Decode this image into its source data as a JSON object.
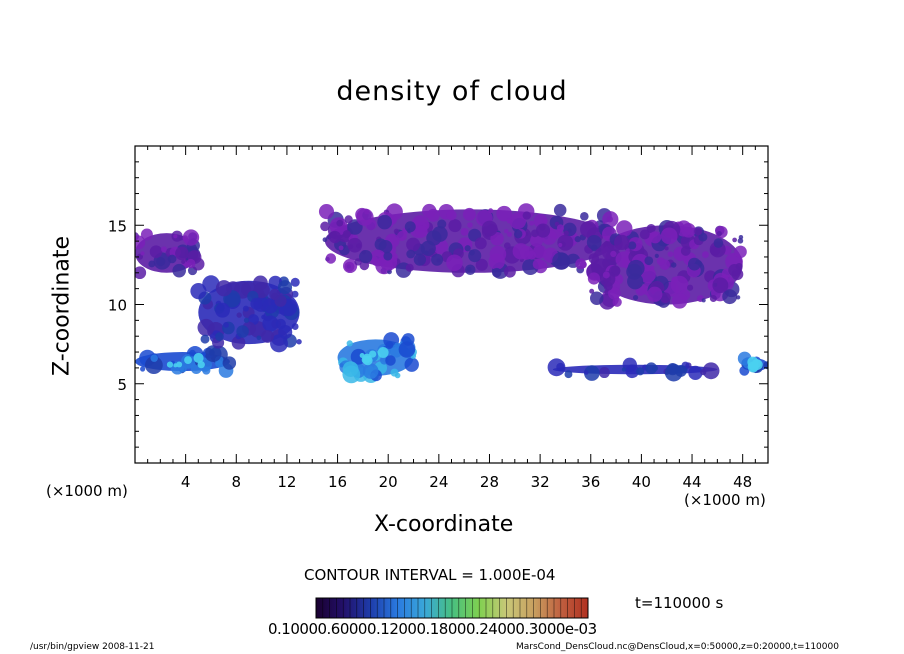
{
  "chart_data": {
    "type": "heatmap",
    "title": "density of cloud",
    "xlabel": "X-coordinate",
    "ylabel": "Z-coordinate",
    "x_unit_label": "(×1000 m)",
    "xlim": [
      0,
      50
    ],
    "ylim": [
      0,
      20
    ],
    "x_ticks": [
      "4",
      "8",
      "12",
      "16",
      "20",
      "24",
      "28",
      "32",
      "36",
      "40",
      "44",
      "48"
    ],
    "y_ticks": [
      "5",
      "10",
      "15"
    ],
    "contour_interval": "CONTOUR INTERVAL = 1.000E-04",
    "time_label": "t=110000 s",
    "colorbar_labels": "0.10000.60000.12000.18000.24000.3000e-03",
    "colorbar_colors": [
      "#1a0030",
      "#22106a",
      "#1e3caa",
      "#2a7ae0",
      "#3aa8d8",
      "#48c080",
      "#80d050",
      "#c8c878",
      "#c8a060",
      "#c06040",
      "#b03020"
    ],
    "cloud_layers": [
      {
        "x_range": [
          0,
          5
        ],
        "z_range": [
          12,
          14.5
        ],
        "density_level": 1
      },
      {
        "x_range": [
          0,
          7.5
        ],
        "z_range": [
          5.8,
          7.0
        ],
        "density_level": 3
      },
      {
        "x_range": [
          5,
          13
        ],
        "z_range": [
          7.5,
          11.5
        ],
        "density_level": 2
      },
      {
        "x_range": [
          16,
          22
        ],
        "z_range": [
          5.5,
          7.8
        ],
        "density_level": 4
      },
      {
        "x_range": [
          15,
          38
        ],
        "z_range": [
          12,
          16
        ],
        "density_level": 1
      },
      {
        "x_range": [
          36,
          48
        ],
        "z_range": [
          10,
          15
        ],
        "density_level": 1
      },
      {
        "x_range": [
          33,
          46
        ],
        "z_range": [
          5.6,
          6.2
        ],
        "density_level": 2
      },
      {
        "x_range": [
          48,
          50
        ],
        "z_range": [
          5.8,
          6.6
        ],
        "density_level": 3
      }
    ]
  },
  "footer": {
    "left": "/usr/bin/gpview  2008-11-21",
    "right": "MarsCond_DensCloud.nc@DensCloud,x=0:50000,z=0:20000,t=110000"
  }
}
